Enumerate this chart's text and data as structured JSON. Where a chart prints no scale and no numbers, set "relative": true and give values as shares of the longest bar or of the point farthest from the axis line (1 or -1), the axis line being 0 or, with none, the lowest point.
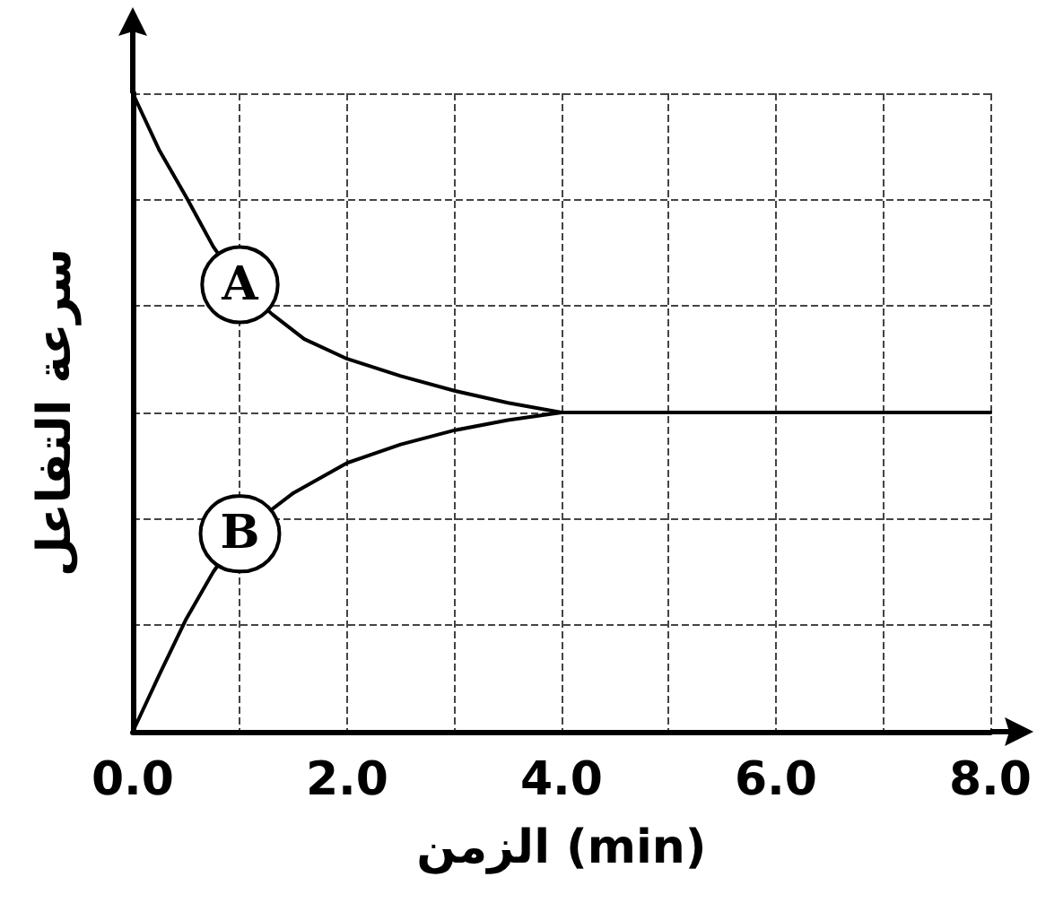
{
  "chart_data": {
    "type": "line",
    "relative": true,
    "xlabel": "الزمن (min)",
    "ylabel": "سرعة التفاعل",
    "xlim": [
      0,
      8
    ],
    "xticks": [
      {
        "value": 0,
        "label": "0.0"
      },
      {
        "value": 1,
        "label": null
      },
      {
        "value": 2,
        "label": "2.0"
      },
      {
        "value": 3,
        "label": null
      },
      {
        "value": 4,
        "label": "4.0"
      },
      {
        "value": 5,
        "label": null
      },
      {
        "value": 6,
        "label": "6.0"
      },
      {
        "value": 7,
        "label": null
      },
      {
        "value": 8,
        "label": "8.0"
      }
    ],
    "grid": true,
    "marker": "none",
    "line_style": "solid",
    "series": [
      {
        "name": "A",
        "color": "#000000",
        "x": [
          0,
          0.25,
          0.5,
          0.75,
          1,
          1.3,
          1.6,
          2,
          2.5,
          3,
          3.5,
          4,
          8
        ],
        "values": [
          1,
          0.91,
          0.837,
          0.76,
          0.7,
          0.654,
          0.615,
          0.584,
          0.557,
          0.534,
          0.515,
          0.5,
          0.5
        ]
      },
      {
        "name": "B",
        "color": "#000000",
        "x": [
          0,
          0.25,
          0.5,
          0.75,
          1,
          1.5,
          2,
          2.5,
          3,
          3.5,
          4,
          8
        ],
        "values": [
          0,
          0.09,
          0.177,
          0.25,
          0.31,
          0.374,
          0.421,
          0.45,
          0.472,
          0.488,
          0.5,
          0.5
        ]
      }
    ]
  }
}
